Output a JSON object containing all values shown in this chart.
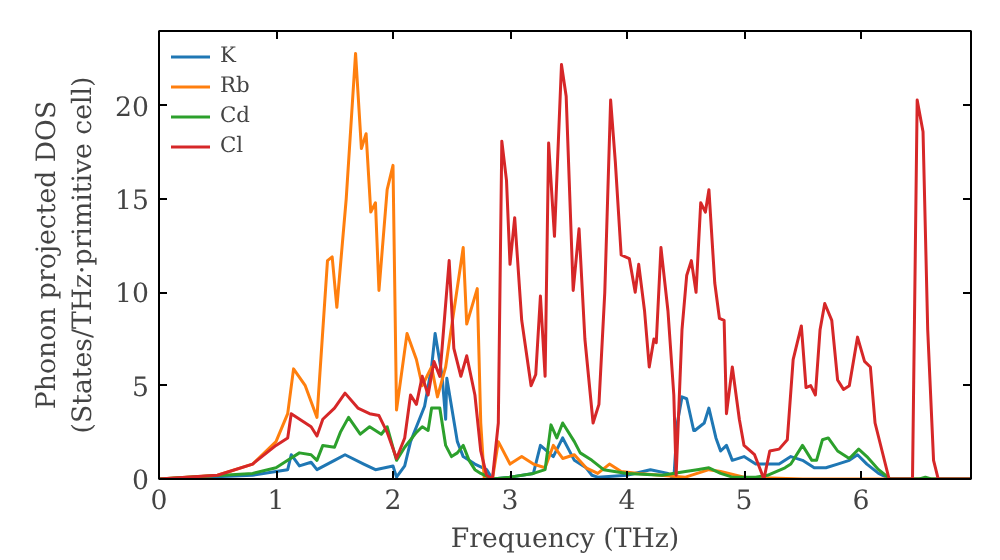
{
  "chart_data": {
    "type": "line",
    "xlabel": "Frequency (THz)",
    "ylabel": "Phonon projected DOS\n(States/THz·primitive cell)",
    "xlim": [
      0,
      6.94
    ],
    "ylim": [
      0,
      24
    ],
    "xticks": [
      0,
      1,
      2,
      3,
      4,
      5,
      6
    ],
    "yticks": [
      0,
      5,
      10,
      15,
      20
    ],
    "grid": false,
    "legend": "top left",
    "line_style": "solid",
    "series": [
      {
        "name": "K",
        "color": "#1f77b4",
        "x": [
          0,
          0.8,
          1.0,
          1.1,
          1.13,
          1.2,
          1.3,
          1.35,
          1.5,
          1.59,
          1.75,
          1.85,
          2.0,
          2.03,
          2.1,
          2.15,
          2.27,
          2.33,
          2.36,
          2.42,
          2.45,
          2.46,
          2.55,
          2.6,
          2.7,
          2.8,
          2.85,
          3.0,
          3.2,
          3.26,
          3.37,
          3.45,
          3.5,
          3.55,
          3.65,
          3.7,
          3.75,
          4.0,
          4.2,
          4.35,
          4.4,
          4.43,
          4.47,
          4.51,
          4.57,
          4.58,
          4.66,
          4.7,
          4.76,
          4.8,
          4.85,
          4.9,
          5.0,
          5.1,
          5.2,
          5.3,
          5.4,
          5.5,
          5.6,
          5.7,
          5.8,
          5.9,
          5.97,
          6.05,
          6.15,
          6.25,
          6.94
        ],
        "values": [
          0,
          0.2,
          0.4,
          0.5,
          1.3,
          0.7,
          0.9,
          0.5,
          1.0,
          1.3,
          0.8,
          0.5,
          0.7,
          0.1,
          0.7,
          2.0,
          3.9,
          6.0,
          7.8,
          5.5,
          3.2,
          5.4,
          2.0,
          1.2,
          0.8,
          0.5,
          0,
          0.1,
          0.3,
          1.8,
          1.2,
          2.2,
          1.6,
          1.0,
          0.6,
          0.2,
          0.1,
          0.2,
          0.5,
          0.3,
          0,
          3.0,
          4.4,
          4.3,
          2.6,
          2.6,
          3.0,
          3.8,
          2.2,
          1.5,
          1.8,
          1.0,
          1.2,
          0.8,
          0.8,
          0.8,
          1.2,
          1.0,
          0.6,
          0.6,
          0.8,
          1.0,
          1.3,
          0.8,
          0.3,
          0,
          0
        ]
      },
      {
        "name": "Rb",
        "color": "#ff7f0e",
        "x": [
          0,
          0.5,
          0.8,
          1.0,
          1.1,
          1.15,
          1.25,
          1.35,
          1.44,
          1.48,
          1.52,
          1.6,
          1.68,
          1.73,
          1.77,
          1.81,
          1.85,
          1.88,
          1.95,
          2.0,
          2.03,
          2.12,
          2.2,
          2.25,
          2.33,
          2.38,
          2.45,
          2.6,
          2.63,
          2.72,
          2.75,
          2.78,
          2.85,
          2.9,
          3.0,
          3.1,
          3.2,
          3.3,
          3.37,
          3.45,
          3.55,
          3.65,
          3.75,
          3.85,
          3.95,
          4.1,
          4.5,
          4.7,
          4.8,
          5.0,
          5.5,
          6.94
        ],
        "values": [
          0,
          0.2,
          0.8,
          2.0,
          3.5,
          5.9,
          5.0,
          3.3,
          11.7,
          11.9,
          9.2,
          15.0,
          22.8,
          17.7,
          18.5,
          14.3,
          14.8,
          10.1,
          15.5,
          16.8,
          3.7,
          7.8,
          6.4,
          5.0,
          6.0,
          4.4,
          6.0,
          12.4,
          8.3,
          10.2,
          3.0,
          0,
          0,
          2.0,
          0.8,
          1.2,
          0.8,
          0.6,
          1.8,
          1.1,
          1.3,
          0.6,
          0.3,
          0.8,
          0.4,
          0.3,
          0.1,
          0.5,
          0.4,
          0.1,
          0,
          0
        ]
      },
      {
        "name": "Cd",
        "color": "#2ca02c",
        "x": [
          0,
          0.8,
          1.0,
          1.1,
          1.2,
          1.3,
          1.35,
          1.4,
          1.5,
          1.55,
          1.62,
          1.72,
          1.8,
          1.9,
          1.95,
          2.03,
          2.1,
          2.2,
          2.25,
          2.3,
          2.33,
          2.4,
          2.45,
          2.5,
          2.55,
          2.6,
          2.65,
          2.7,
          2.75,
          2.85,
          3.0,
          3.2,
          3.3,
          3.35,
          3.4,
          3.45,
          3.55,
          3.6,
          3.7,
          3.8,
          4.0,
          4.3,
          4.5,
          4.6,
          4.7,
          4.8,
          4.9,
          5.1,
          5.2,
          5.35,
          5.4,
          5.5,
          5.58,
          5.62,
          5.67,
          5.72,
          5.8,
          5.9,
          5.98,
          6.05,
          6.15,
          6.25,
          6.5,
          6.55,
          6.6,
          6.94
        ],
        "values": [
          0,
          0.3,
          0.6,
          1.0,
          1.4,
          1.3,
          1.0,
          1.8,
          1.7,
          2.5,
          3.3,
          2.4,
          2.8,
          2.4,
          2.8,
          1.0,
          1.7,
          2.5,
          2.8,
          2.6,
          3.8,
          3.8,
          1.8,
          1.2,
          1.4,
          1.8,
          1.0,
          0.5,
          0.3,
          0,
          0.1,
          0.3,
          0.5,
          2.9,
          2.2,
          3.0,
          2.0,
          1.4,
          1.0,
          0.5,
          0.3,
          0.2,
          0.4,
          0.5,
          0.6,
          0.3,
          0.1,
          0.1,
          0.2,
          0.6,
          0.8,
          1.8,
          1.0,
          1.0,
          2.1,
          2.2,
          1.5,
          1.1,
          1.6,
          1.2,
          0.5,
          0,
          0,
          0.1,
          0,
          0
        ]
      },
      {
        "name": "Cl",
        "color": "#d62728",
        "x": [
          0,
          0.5,
          0.8,
          1.0,
          1.1,
          1.13,
          1.3,
          1.35,
          1.4,
          1.5,
          1.59,
          1.7,
          1.8,
          1.88,
          1.95,
          2.03,
          2.1,
          2.15,
          2.2,
          2.25,
          2.3,
          2.35,
          2.4,
          2.48,
          2.52,
          2.58,
          2.63,
          2.7,
          2.75,
          2.8,
          2.85,
          2.9,
          2.93,
          2.97,
          3.0,
          3.04,
          3.1,
          3.18,
          3.22,
          3.26,
          3.3,
          3.33,
          3.38,
          3.44,
          3.48,
          3.54,
          3.59,
          3.64,
          3.71,
          3.76,
          3.81,
          3.86,
          3.9,
          3.95,
          4.02,
          4.07,
          4.1,
          4.15,
          4.19,
          4.23,
          4.25,
          4.29,
          4.35,
          4.4,
          4.42,
          4.47,
          4.51,
          4.55,
          4.59,
          4.63,
          4.67,
          4.7,
          4.75,
          4.79,
          4.83,
          4.85,
          4.9,
          4.96,
          5.0,
          5.09,
          5.17,
          5.22,
          5.3,
          5.37,
          5.42,
          5.49,
          5.53,
          5.57,
          5.61,
          5.65,
          5.69,
          5.75,
          5.8,
          5.85,
          5.9,
          5.97,
          6.03,
          6.08,
          6.12,
          6.18,
          6.24,
          6.44,
          6.48,
          6.53,
          6.57,
          6.62,
          6.66,
          6.94
        ],
        "values": [
          0,
          0.2,
          0.8,
          1.8,
          2.2,
          3.5,
          2.8,
          2.3,
          3.2,
          3.8,
          4.6,
          3.8,
          3.5,
          3.4,
          2.5,
          1.1,
          2.2,
          4.5,
          4.0,
          5.5,
          4.5,
          6.3,
          5.5,
          11.7,
          7.0,
          5.5,
          6.6,
          4.5,
          1.5,
          0.2,
          0,
          3.0,
          18.1,
          16.0,
          11.5,
          14.0,
          8.5,
          5.0,
          5.6,
          9.8,
          5.5,
          18.0,
          13.0,
          22.2,
          20.5,
          10.1,
          13.4,
          7.5,
          3.0,
          4.0,
          10.0,
          20.3,
          17.0,
          12.0,
          11.8,
          10.0,
          11.5,
          9.0,
          6.0,
          7.5,
          7.3,
          12.4,
          9.0,
          4.5,
          0.2,
          8.0,
          10.9,
          11.7,
          10.0,
          14.8,
          14.3,
          15.5,
          10.5,
          8.6,
          8.5,
          3.5,
          6.0,
          3.2,
          1.8,
          1.3,
          0,
          1.5,
          1.6,
          2.1,
          6.4,
          8.2,
          4.9,
          5.0,
          4.5,
          8.0,
          9.4,
          8.5,
          5.3,
          4.8,
          5.0,
          7.6,
          6.3,
          6.0,
          3.0,
          1.5,
          0,
          0,
          20.3,
          18.6,
          8.0,
          1.0,
          0,
          0
        ]
      }
    ]
  }
}
